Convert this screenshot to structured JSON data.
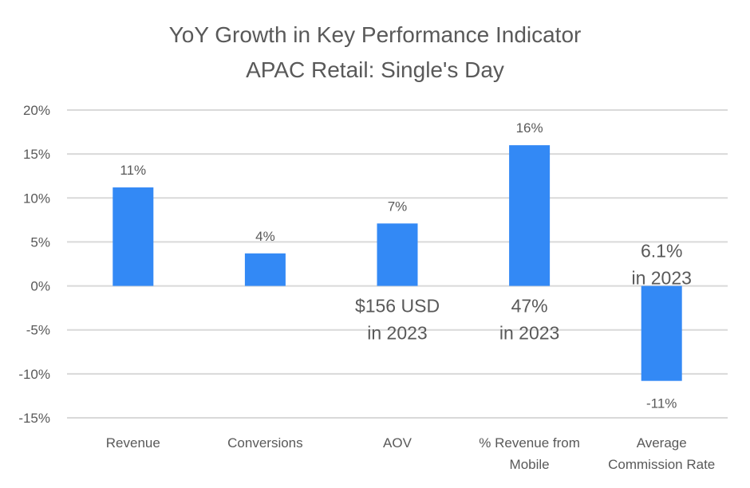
{
  "chart_data": {
    "type": "bar",
    "title": [
      "YoY Growth in Key Performance Indicator",
      "APAC Retail: Single's Day"
    ],
    "xlabel": "",
    "ylabel": "",
    "ylim": [
      -15,
      20
    ],
    "yticks": [
      20,
      15,
      10,
      5,
      0,
      -5,
      -10,
      -15
    ],
    "ytick_labels": [
      "20%",
      "15%",
      "10%",
      "5%",
      "0%",
      "-5%",
      "-10%",
      "-15%"
    ],
    "grid": true,
    "categories": [
      [
        "Revenue"
      ],
      [
        "Conversions"
      ],
      [
        "AOV"
      ],
      [
        "% Revenue from",
        "Mobile"
      ],
      [
        "Average",
        "Commission Rate"
      ]
    ],
    "values": [
      11.2,
      3.7,
      7.1,
      16.0,
      -10.8
    ],
    "data_labels": [
      "11%",
      "4%",
      "7%",
      "16%",
      "-11%"
    ],
    "annotations": [
      null,
      null,
      [
        "$156 USD",
        "in 2023"
      ],
      [
        "47%",
        "in 2023"
      ],
      [
        "6.1%",
        "in 2023"
      ]
    ],
    "bar_color": "#3389f5",
    "grid_color": "#d9d9d9",
    "text_color": "#595959"
  }
}
